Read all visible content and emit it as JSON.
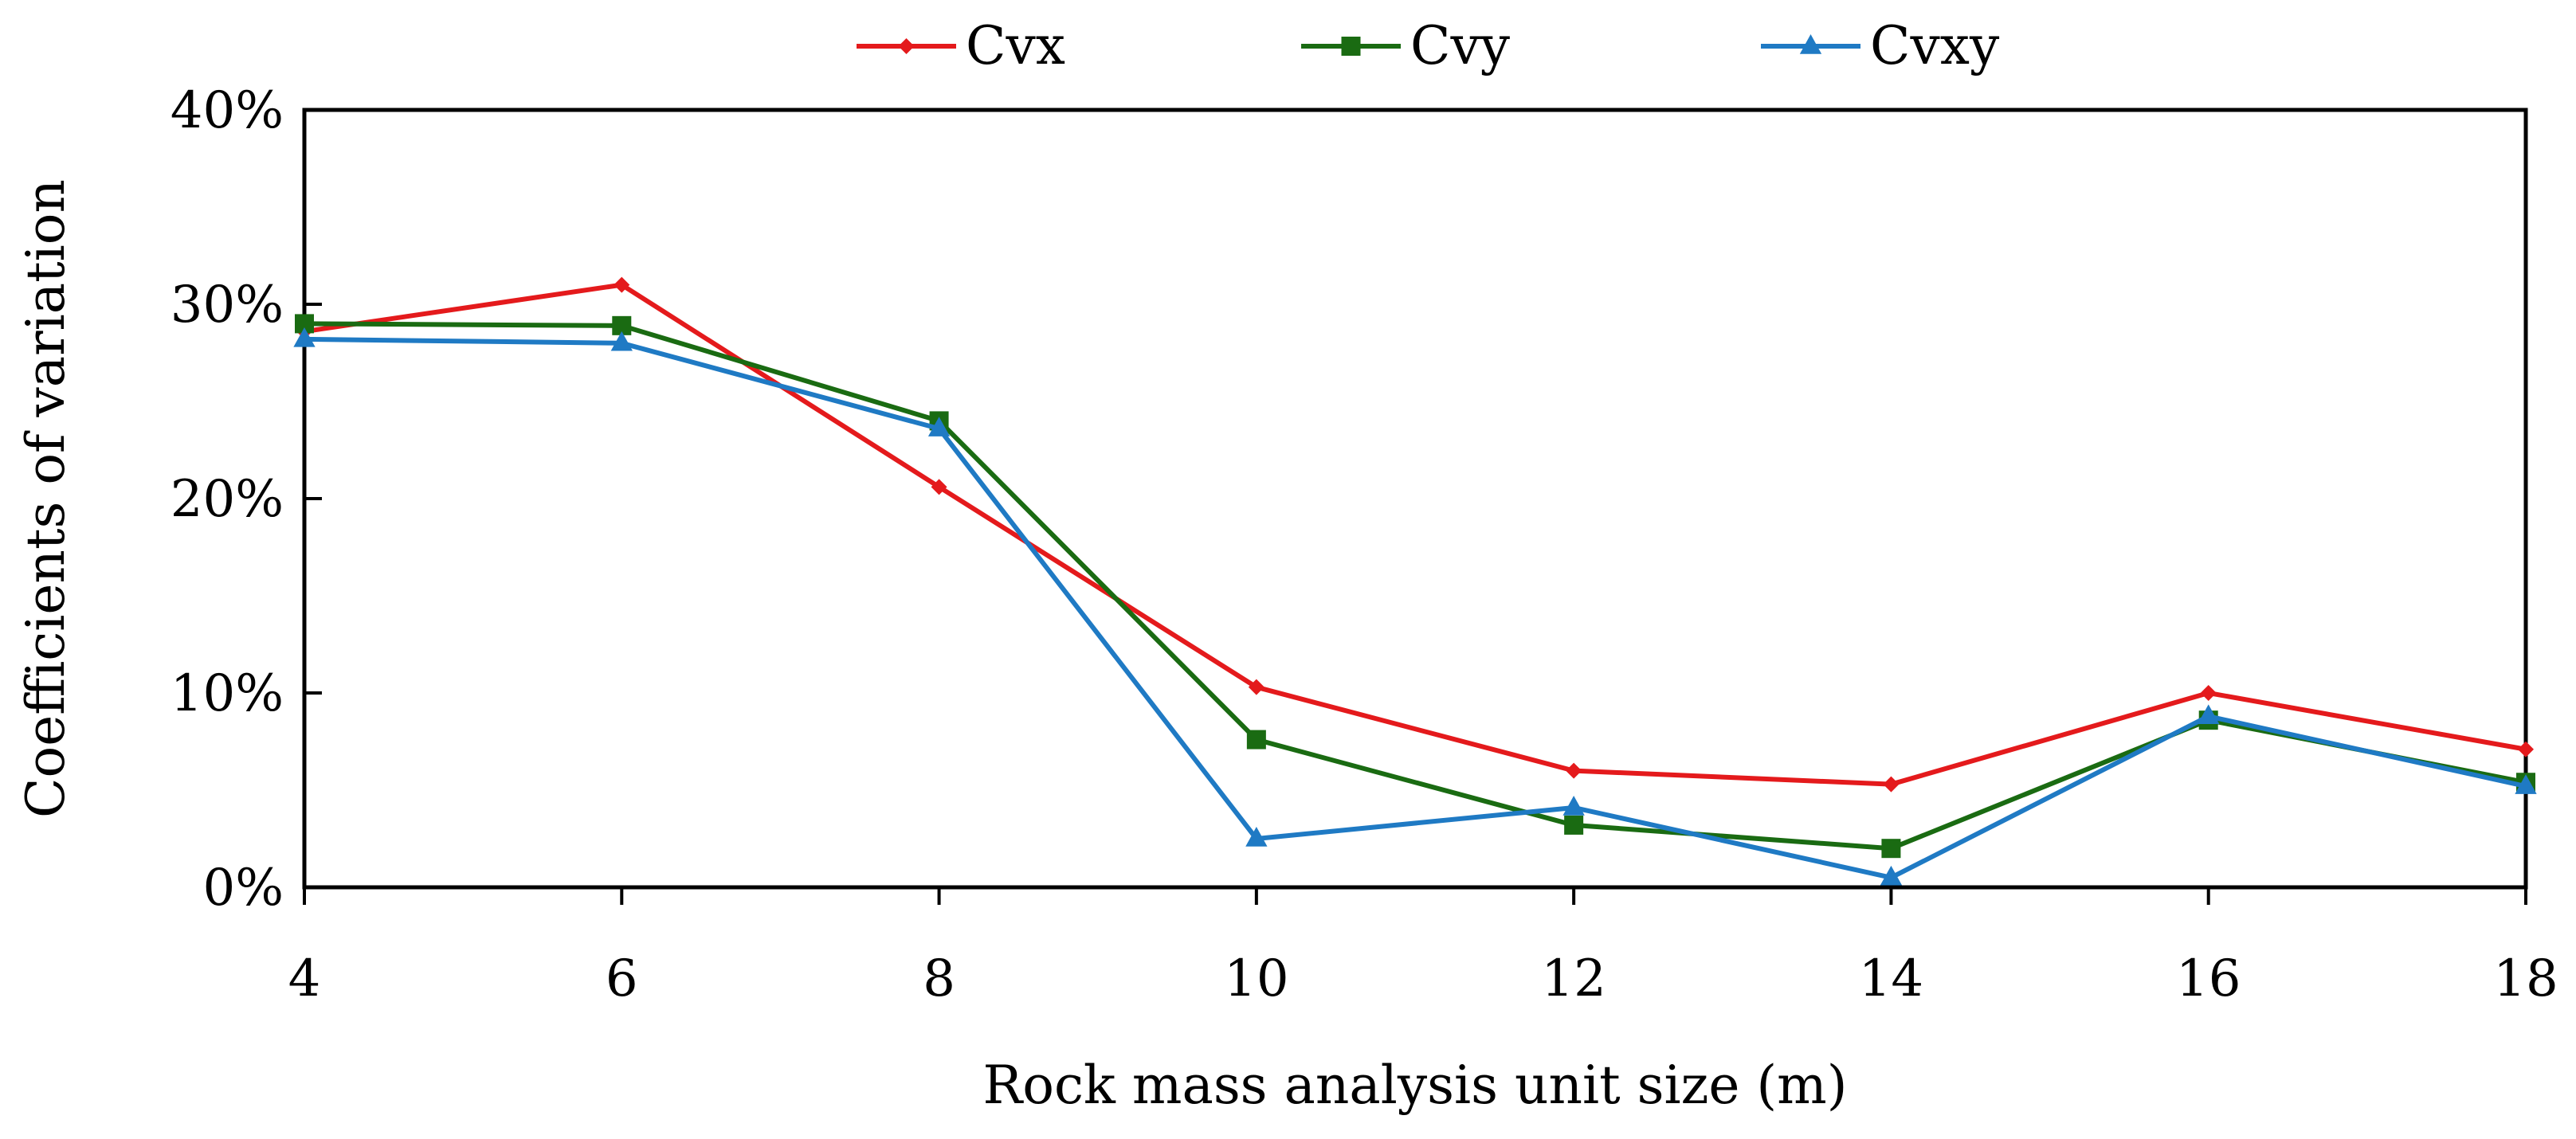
{
  "chart_data": {
    "type": "line",
    "title": "",
    "xlabel": "Rock mass analysis unit size (m)",
    "ylabel": "Coefficients of variation",
    "x": [
      4,
      6,
      8,
      10,
      12,
      14,
      16,
      18
    ],
    "x_tick_labels": [
      "4",
      "6",
      "8",
      "10",
      "12",
      "14",
      "16",
      "18"
    ],
    "y_tick_values": [
      0,
      10,
      20,
      30,
      40
    ],
    "y_tick_labels": [
      "0%",
      "10%",
      "20%",
      "30%",
      "40%"
    ],
    "xlim": [
      4,
      18
    ],
    "ylim": [
      0,
      40
    ],
    "y_unit": "percent",
    "grid": false,
    "legend_position": "top-center",
    "series": [
      {
        "name": "Cvx",
        "color": "#e41a1c",
        "marker": "diamond",
        "values": [
          28.6,
          31.0,
          20.6,
          10.3,
          6.0,
          5.3,
          10.0,
          7.1
        ]
      },
      {
        "name": "Cvy",
        "color": "#1a6b12",
        "marker": "square",
        "values": [
          29.0,
          28.9,
          24.0,
          7.6,
          3.2,
          2.0,
          8.6,
          5.4
        ]
      },
      {
        "name": "Cvxy",
        "color": "#1f7ac4",
        "marker": "triangle",
        "values": [
          28.2,
          28.0,
          23.6,
          2.5,
          4.1,
          0.5,
          8.8,
          5.2
        ]
      }
    ]
  }
}
